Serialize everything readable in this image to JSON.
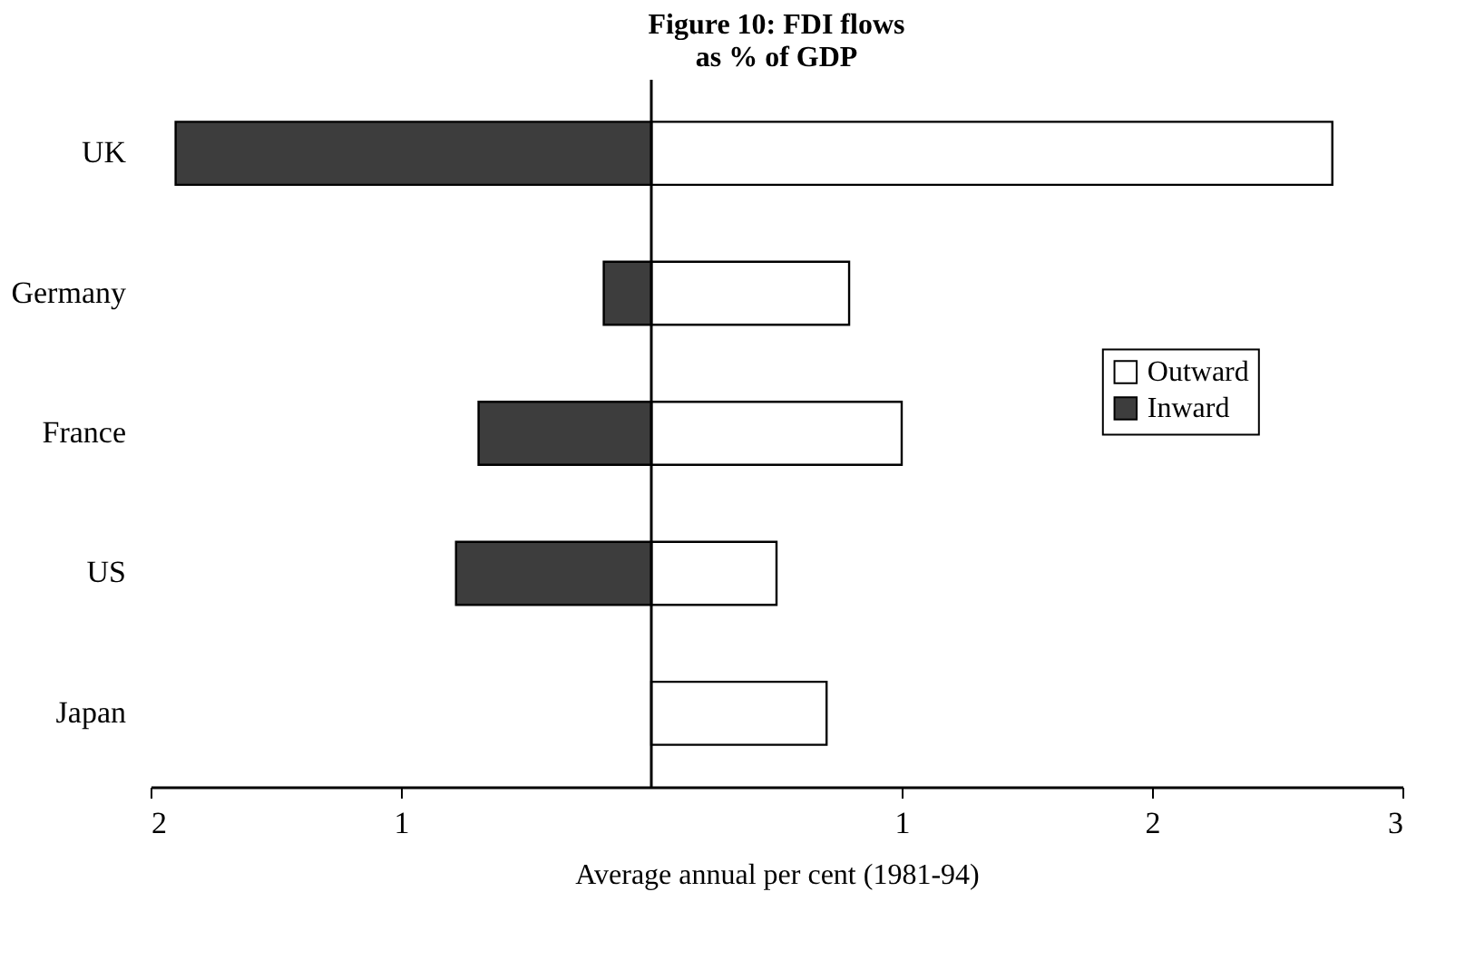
{
  "chart_data": {
    "type": "bar",
    "orientation": "horizontal",
    "title": [
      "Figure 10: FDI flows",
      "as % of GDP"
    ],
    "xlabel": "Average annual per cent (1981-94)",
    "categories": [
      "UK",
      "Germany",
      "France",
      "US",
      "Japan"
    ],
    "series": [
      {
        "name": "Outward",
        "color": "#ffffff",
        "values": [
          2.72,
          0.79,
          1.0,
          0.5,
          0.7
        ]
      },
      {
        "name": "Inward",
        "color": "#3d3d3d",
        "values": [
          -1.9,
          -0.19,
          -0.69,
          -0.78,
          null
        ]
      }
    ],
    "xlim": [
      -2,
      3
    ],
    "xticks": [
      {
        "value": -2,
        "label": "2"
      },
      {
        "value": -1,
        "label": "1"
      },
      1,
      2,
      3
    ],
    "stacked": true,
    "grid": false,
    "legend": "right"
  }
}
